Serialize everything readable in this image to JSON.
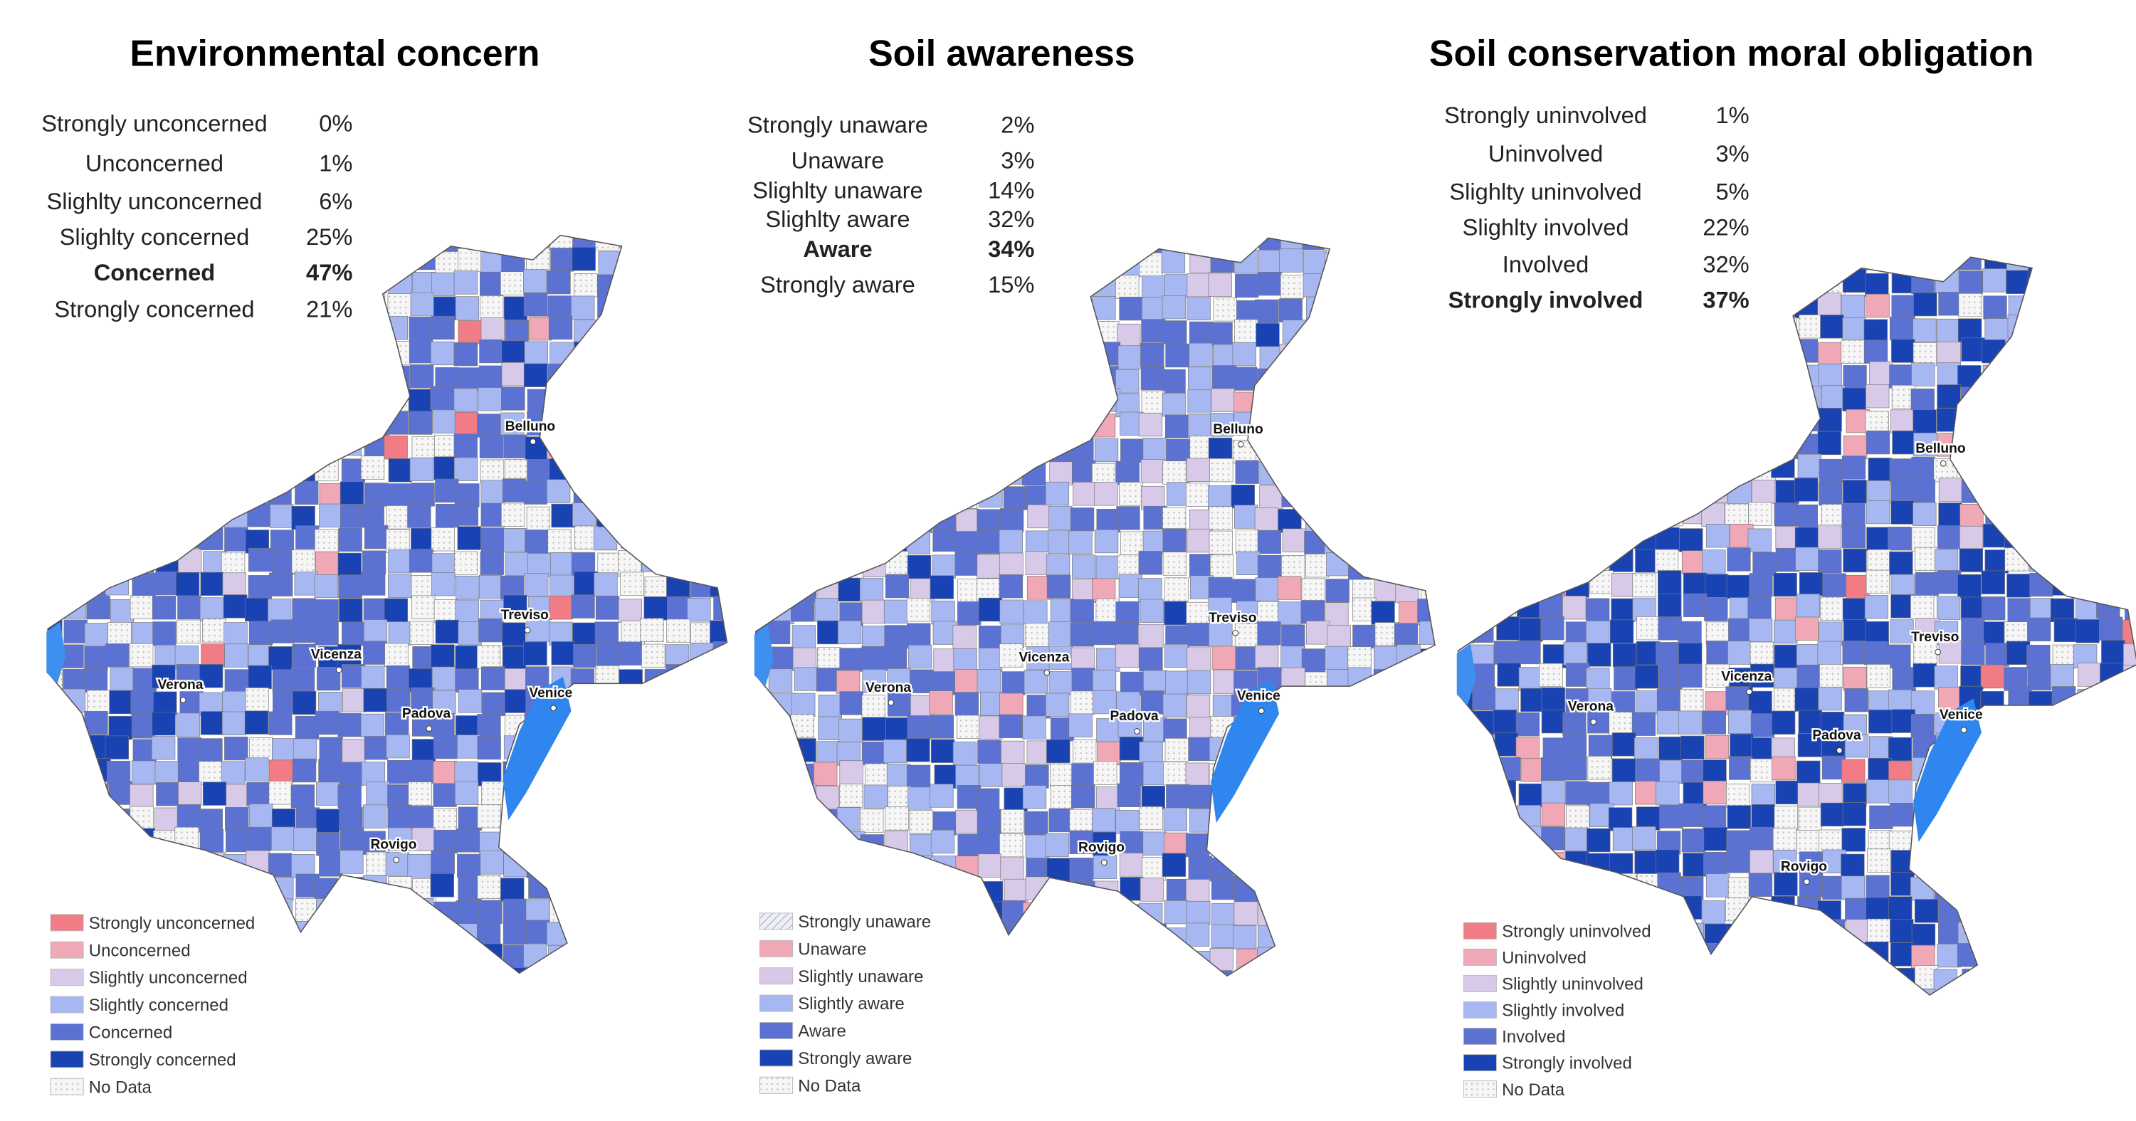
{
  "panels": [
    {
      "title": "Environmental concern",
      "stats": [
        {
          "label": "Strongly unconcerned",
          "value": "0%"
        },
        {
          "label": "Unconcerned",
          "value": "1%"
        },
        {
          "label": "Slighlty unconcerned",
          "value": "6%"
        },
        {
          "label": "Slighlty concerned",
          "value": "25%"
        },
        {
          "label": "Concerned",
          "value": "47%",
          "bold": true
        },
        {
          "label": "Strongly concerned",
          "value": "21%"
        }
      ],
      "legend": [
        {
          "label": "Strongly unconcerned",
          "color": "#f27c86"
        },
        {
          "label": "Unconcerned",
          "color": "#f0a7b6"
        },
        {
          "label": "Slightly unconcerned",
          "color": "#d9c9e9"
        },
        {
          "label": "Slightly concerned",
          "color": "#a7b7f1"
        },
        {
          "label": "Concerned",
          "color": "#5b72d3"
        },
        {
          "label": "Strongly concerned",
          "color": "#1942b3"
        },
        {
          "label": "No Data",
          "color": "#f3f3f3"
        }
      ],
      "cities": [
        "Belluno",
        "Treviso",
        "Vicenza",
        "Verona",
        "Padova",
        "Venice",
        "Rovigo"
      ]
    },
    {
      "title": "Soil awareness",
      "stats": [
        {
          "label": "Strongly unaware",
          "value": "2%"
        },
        {
          "label": "Unaware",
          "value": "3%"
        },
        {
          "label": "Slighlty unaware",
          "value": "14%"
        },
        {
          "label": "Slighlty aware",
          "value": "32%"
        },
        {
          "label": "Aware",
          "value": "34%",
          "bold": true
        },
        {
          "label": "Strongly aware",
          "value": "15%"
        }
      ],
      "legend": [
        {
          "label": "Strongly unaware",
          "color": "#dfe3ee"
        },
        {
          "label": "Unaware",
          "color": "#f0a7b6"
        },
        {
          "label": "Slightly unaware",
          "color": "#d9c9e9"
        },
        {
          "label": "Slightly aware",
          "color": "#a7b7f1"
        },
        {
          "label": "Aware",
          "color": "#5b72d3"
        },
        {
          "label": "Strongly aware",
          "color": "#1942b3"
        },
        {
          "label": "No Data",
          "color": "#f3f3f3"
        }
      ],
      "cities": [
        "Belluno",
        "Treviso",
        "Vicenza",
        "Verona",
        "Padova",
        "Venice",
        "Rovigo"
      ]
    },
    {
      "title": "Soil conservation moral obligation",
      "stats": [
        {
          "label": "Strongly uninvolved",
          "value": "1%"
        },
        {
          "label": "Uninvolved",
          "value": "3%"
        },
        {
          "label": "Slighlty uninvolved",
          "value": "5%"
        },
        {
          "label": "Slighlty involved",
          "value": "22%"
        },
        {
          "label": "Involved",
          "value": "32%"
        },
        {
          "label": "Strongly involved",
          "value": "37%",
          "bold": true
        }
      ],
      "legend": [
        {
          "label": "Strongly uninvolved",
          "color": "#f27c86"
        },
        {
          "label": "Uninvolved",
          "color": "#f0a7b6"
        },
        {
          "label": "Slightly uninvolved",
          "color": "#d9c9e9"
        },
        {
          "label": "Slightly involved",
          "color": "#a7b7f1"
        },
        {
          "label": "Involved",
          "color": "#5b72d3"
        },
        {
          "label": "Strongly involved",
          "color": "#1942b3"
        },
        {
          "label": "No Data",
          "color": "#f3f3f3"
        }
      ],
      "cities": [
        "Belluno",
        "Treviso",
        "Vicenza",
        "Verona",
        "Padova",
        "Venice",
        "Rovigo"
      ]
    }
  ]
}
